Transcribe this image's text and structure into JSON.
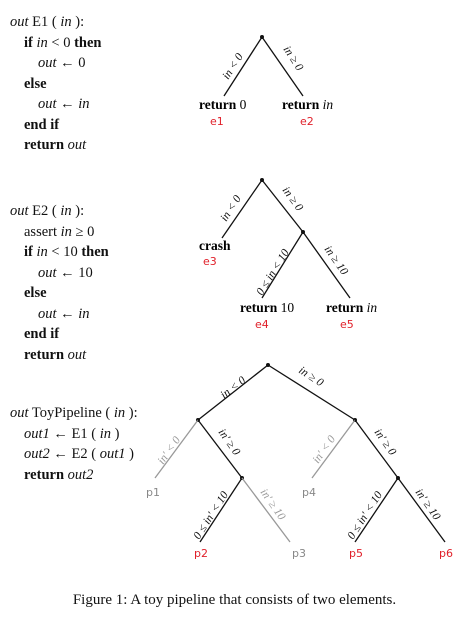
{
  "e1": {
    "header": [
      "out",
      " E1 ( ",
      "in",
      " ):"
    ],
    "lines": [
      {
        "indent": 1,
        "kw": "if ",
        "var": "in",
        "rest": " < 0 ",
        "kw2": "then"
      },
      {
        "indent": 2,
        "var": "out",
        "rest": " ← 0"
      },
      {
        "indent": 1,
        "kw": "else"
      },
      {
        "indent": 2,
        "var": "out",
        "rest": " ← ",
        "var2": "in"
      },
      {
        "indent": 1,
        "kw": "end if"
      },
      {
        "indent": 1,
        "kw": "return ",
        "var": "out"
      }
    ],
    "edges": [
      "in < 0",
      "in ≥ 0"
    ],
    "leaves": [
      {
        "bold": "return",
        "rest": " 0",
        "tag": "e1"
      },
      {
        "bold": "return",
        "ital": " in",
        "tag": "e2"
      }
    ]
  },
  "e2": {
    "header": [
      "out",
      " E2 ( ",
      "in",
      " ):"
    ],
    "lines": [
      {
        "indent": 1,
        "plain": "assert ",
        "var": "in",
        "rest": " ≥ 0"
      },
      {
        "indent": 1,
        "kw": "if ",
        "var": "in",
        "rest": " < 10 ",
        "kw2": "then"
      },
      {
        "indent": 2,
        "var": "out",
        "rest": " ← 10"
      },
      {
        "indent": 1,
        "kw": "else"
      },
      {
        "indent": 2,
        "var": "out",
        "rest": " ← ",
        "var2": "in"
      },
      {
        "indent": 1,
        "kw": "end if"
      },
      {
        "indent": 1,
        "kw": "return ",
        "var": "out"
      }
    ],
    "edges": [
      "in < 0",
      "in ≥ 0",
      "0 ≤ in < 10",
      "in ≥ 10"
    ],
    "leaves": [
      {
        "bold": "crash",
        "tag": "e3"
      },
      {
        "bold": "return",
        "rest": " 10",
        "tag": "e4"
      },
      {
        "bold": "return",
        "ital": " in",
        "tag": "e5"
      }
    ]
  },
  "toy": {
    "header": [
      "out",
      " ToyPipeline ( ",
      "in",
      " ):"
    ],
    "lines": [
      {
        "indent": 1,
        "var": "out1",
        "rest": " ← E1 ( ",
        "var2": "in",
        "rest2": " )"
      },
      {
        "indent": 1,
        "var": "out2",
        "rest": " ← E2 ( ",
        "var2": "out1",
        "rest2": " )"
      },
      {
        "indent": 1,
        "kw": "return ",
        "var": "out2"
      }
    ],
    "edges": [
      "in < 0",
      "in ≥ 0",
      "in′ < 0",
      "in′ ≥ 0",
      "in′ < 0",
      "in′ ≥ 0",
      "0 ≤ in′ < 10",
      "in′ ≥ 10",
      "0 ≤ in′ < 10",
      "in′ ≥ 10"
    ],
    "paths": [
      "p1",
      "p2",
      "p3",
      "p4",
      "p5",
      "p6"
    ]
  },
  "caption": "Figure 1: A toy pipeline that consists of two elements.",
  "colors": {
    "red_tag": "#e0202a",
    "gray": "#888888",
    "black": "#111111"
  }
}
